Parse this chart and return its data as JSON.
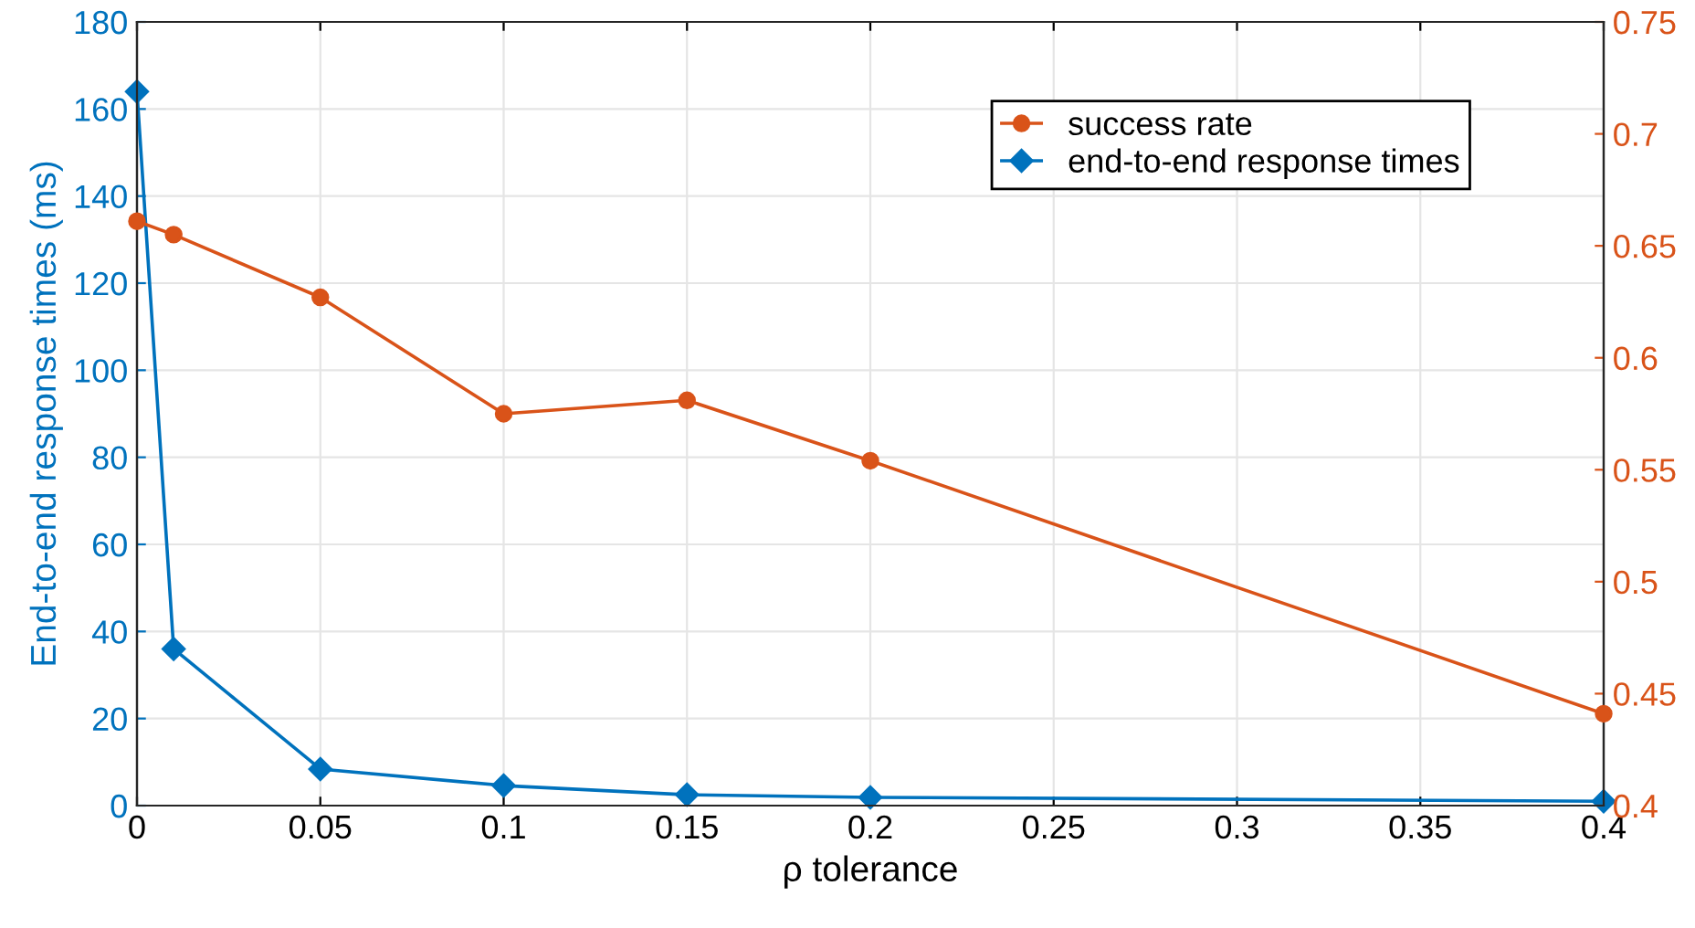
{
  "chart_data": {
    "type": "line",
    "xlabel": "ρ tolerance",
    "ylabel": "End-to-end response times (ms)",
    "x": [
      0,
      0.01,
      0.05,
      0.1,
      0.15,
      0.2,
      0.4
    ],
    "series": [
      {
        "name": "success rate",
        "color": "#d95319",
        "axis": "y2",
        "marker": "circle",
        "values": [
          0.661,
          0.655,
          0.627,
          0.575,
          0.581,
          0.554,
          0.441
        ]
      },
      {
        "name": "end-to-end response times",
        "color": "#0072bd",
        "marker": "diamond",
        "values": [
          164,
          36,
          8.4,
          4.6,
          2.5,
          1.9,
          1.0
        ]
      }
    ],
    "xlim": [
      0,
      0.4
    ],
    "xticks": [
      0,
      0.05,
      0.1,
      0.15,
      0.2,
      0.25,
      0.3,
      0.35,
      0.4
    ],
    "ylim": [
      0,
      180
    ],
    "yticks": [
      0,
      20,
      40,
      60,
      80,
      100,
      120,
      140,
      160,
      180
    ],
    "y2lim": [
      0.4,
      0.75
    ],
    "y2ticks": [
      0.4,
      0.45,
      0.5,
      0.55,
      0.6,
      0.65,
      0.7,
      0.75
    ],
    "grid": true,
    "legend": "top right",
    "line_style": "solid"
  }
}
